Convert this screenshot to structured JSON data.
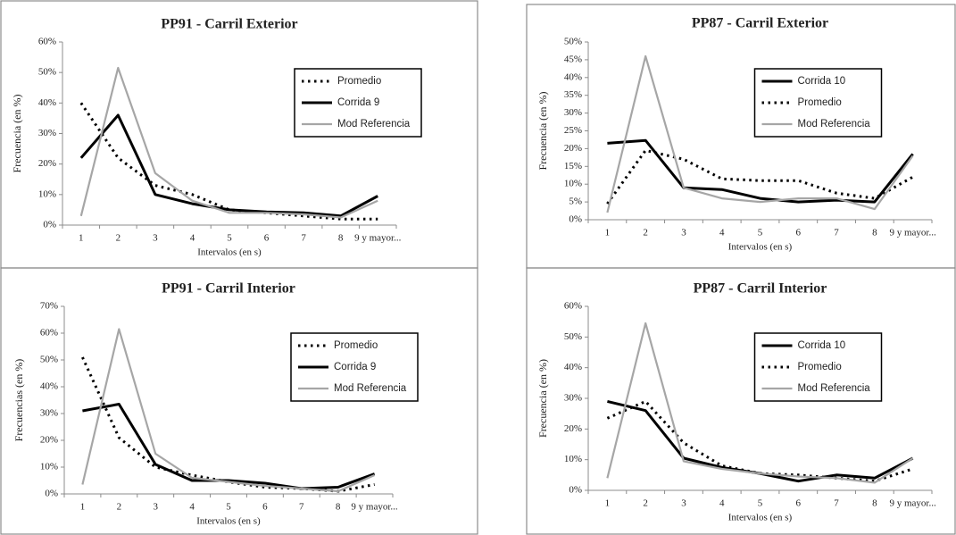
{
  "chart_data": [
    {
      "type": "line",
      "title": "PP91 - Carril Exterior",
      "x_label": "Intervalos (en s)",
      "y_label": "Frecuencia (en %)",
      "categories": [
        "1",
        "2",
        "3",
        "4",
        "5",
        "6",
        "7",
        "8",
        "9 y mayor..."
      ],
      "ylim": [
        0,
        60
      ],
      "yticks": [
        {
          "value": 0,
          "label": "0%"
        },
        {
          "value": 10,
          "label": "10%"
        },
        {
          "value": 20,
          "label": "20%"
        },
        {
          "value": 30,
          "label": "30%"
        },
        {
          "value": 40,
          "label": "40%"
        },
        {
          "value": 50,
          "label": "50%"
        },
        {
          "value": 60,
          "label": "60%"
        }
      ],
      "grid": false,
      "legend": "upper right",
      "series": [
        {
          "name": "Promedio",
          "color": "#000000",
          "style": "dotted",
          "values": [
            40,
            22,
            13,
            10,
            5,
            4,
            3,
            2,
            2
          ]
        },
        {
          "name": "Corrida 9",
          "color": "#000000",
          "style": "solid",
          "values": [
            22,
            36,
            10,
            7,
            5,
            4.3,
            4,
            3,
            9.5
          ]
        },
        {
          "name": "Mod Referencia",
          "color": "#a6a6a6",
          "style": "solid",
          "values": [
            3,
            51.5,
            17,
            8,
            4,
            4,
            3.5,
            2.5,
            8
          ]
        }
      ]
    },
    {
      "type": "line",
      "title": "PP87 - Carril Exterior",
      "x_label": "Intervalos (en s)",
      "y_label": "Frecuencia (en %)",
      "categories": [
        "1",
        "2",
        "3",
        "4",
        "5",
        "6",
        "7",
        "8",
        "9 y mayor..."
      ],
      "ylim": [
        0,
        50
      ],
      "yticks": [
        {
          "value": 0,
          "label": "0%"
        },
        {
          "value": 5,
          "label": "5%"
        },
        {
          "value": 10,
          "label": "10%"
        },
        {
          "value": 15,
          "label": "15%"
        },
        {
          "value": 20,
          "label": "20%"
        },
        {
          "value": 25,
          "label": "25%"
        },
        {
          "value": 30,
          "label": "30%"
        },
        {
          "value": 35,
          "label": "35%"
        },
        {
          "value": 40,
          "label": "40%"
        },
        {
          "value": 45,
          "label": "45%"
        },
        {
          "value": 50,
          "label": "50%"
        }
      ],
      "grid": false,
      "legend": "upper center",
      "series": [
        {
          "name": "Corrida 10",
          "color": "#000000",
          "style": "solid",
          "values": [
            21.5,
            22.3,
            9,
            8.5,
            6,
            5,
            5.5,
            5,
            18.5
          ]
        },
        {
          "name": "Promedio",
          "color": "#000000",
          "style": "dotted",
          "values": [
            4.5,
            19.5,
            17,
            11.5,
            11,
            11,
            7.5,
            6,
            12
          ]
        },
        {
          "name": "Mod Referencia",
          "color": "#a6a6a6",
          "style": "solid",
          "values": [
            2,
            46,
            9,
            6,
            5,
            6,
            6,
            3,
            18
          ]
        }
      ]
    },
    {
      "type": "line",
      "title": "PP91 - Carril Interior",
      "x_label": "Intervalos (en s)",
      "y_label": "Frecuencias (en %)",
      "categories": [
        "1",
        "2",
        "3",
        "4",
        "5",
        "6",
        "7",
        "8",
        "9 y mayor..."
      ],
      "ylim": [
        0,
        70
      ],
      "yticks": [
        {
          "value": 0,
          "label": "0%"
        },
        {
          "value": 10,
          "label": "10%"
        },
        {
          "value": 20,
          "label": "20%"
        },
        {
          "value": 30,
          "label": "30%"
        },
        {
          "value": 40,
          "label": "40%"
        },
        {
          "value": 50,
          "label": "50%"
        },
        {
          "value": 60,
          "label": "60%"
        },
        {
          "value": 70,
          "label": "70%"
        }
      ],
      "grid": false,
      "legend": "upper right",
      "series": [
        {
          "name": "Promedio",
          "color": "#000000",
          "style": "dotted",
          "values": [
            51,
            21,
            10,
            7,
            4.5,
            2.5,
            2,
            1,
            3.5
          ]
        },
        {
          "name": "Corrida 9",
          "color": "#000000",
          "style": "solid",
          "values": [
            31,
            33.5,
            11,
            5,
            5,
            4,
            2,
            2.5,
            7.5
          ]
        },
        {
          "name": "Mod Referencia",
          "color": "#a6a6a6",
          "style": "solid",
          "values": [
            3.5,
            61.5,
            15,
            6,
            4.5,
            3,
            2,
            1,
            7
          ]
        }
      ]
    },
    {
      "type": "line",
      "title": "PP87 - Carril Interior",
      "x_label": "Intervalos (en s)",
      "y_label": "Frecuencia (en %)",
      "categories": [
        "1",
        "2",
        "3",
        "4",
        "5",
        "6",
        "7",
        "8",
        "9 y mayor..."
      ],
      "ylim": [
        0,
        60
      ],
      "yticks": [
        {
          "value": 0,
          "label": "0%"
        },
        {
          "value": 10,
          "label": "10%"
        },
        {
          "value": 20,
          "label": "20%"
        },
        {
          "value": 30,
          "label": "30%"
        },
        {
          "value": 40,
          "label": "40%"
        },
        {
          "value": 50,
          "label": "50%"
        },
        {
          "value": 60,
          "label": "60%"
        }
      ],
      "grid": false,
      "legend": "upper center",
      "series": [
        {
          "name": "Corrida 10",
          "color": "#000000",
          "style": "solid",
          "values": [
            29,
            26,
            10.5,
            7.5,
            5.5,
            3,
            5,
            4,
            10.5
          ]
        },
        {
          "name": "Promedio",
          "color": "#000000",
          "style": "dotted",
          "values": [
            23.5,
            29,
            15.5,
            8,
            5.5,
            5,
            4,
            3,
            7
          ]
        },
        {
          "name": "Mod Referencia",
          "color": "#a6a6a6",
          "style": "solid",
          "values": [
            4,
            54.5,
            9.5,
            7,
            5.5,
            4.5,
            4,
            2.5,
            10.5
          ]
        }
      ]
    }
  ]
}
